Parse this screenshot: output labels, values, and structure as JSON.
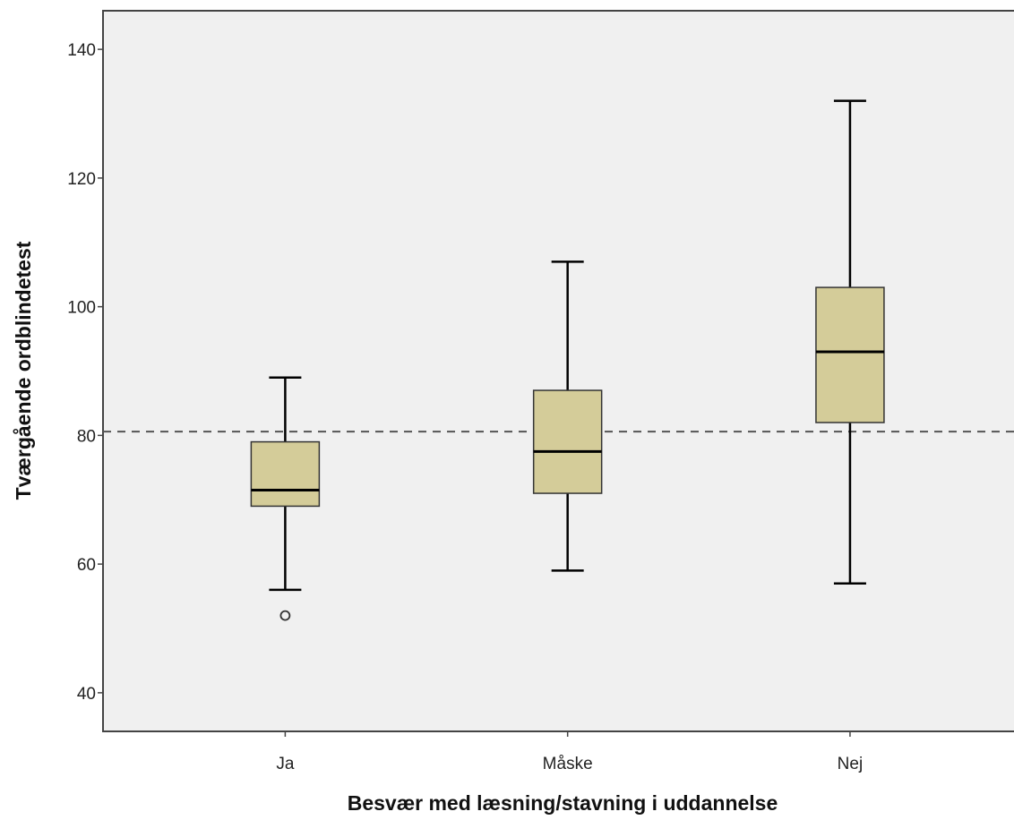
{
  "chart_data": {
    "type": "box",
    "title": "",
    "xlabel": "Besvær med læsning/stavning i uddannelse",
    "ylabel": "Tværgående ordblindetest",
    "categories": [
      "Ja",
      "Måske",
      "Nej"
    ],
    "ylim": [
      34,
      146
    ],
    "yticks": [
      40,
      60,
      80,
      100,
      120,
      140
    ],
    "ytick_labels": [
      "40",
      "60",
      "80",
      "100",
      "120",
      "140"
    ],
    "boxes": [
      {
        "category": "Ja",
        "min": 56,
        "q1": 69,
        "median": 71.5,
        "q3": 79,
        "max": 89,
        "outliers": [
          52
        ]
      },
      {
        "category": "Måske",
        "min": 59,
        "q1": 71,
        "median": 77.5,
        "q3": 87,
        "max": 107,
        "outliers": []
      },
      {
        "category": "Nej",
        "min": 57,
        "q1": 82,
        "median": 93,
        "q3": 103,
        "max": 132,
        "outliers": []
      }
    ],
    "reference_line": {
      "y": 80.6,
      "style": "dashed"
    },
    "grid": false,
    "legend": "none",
    "colors": {
      "plot_background": "#f0f0f0",
      "box_fill": "#d4cc99",
      "box_stroke": "#333333",
      "median": "#000000",
      "whisker": "#000000",
      "reference_line": "#555555"
    }
  }
}
